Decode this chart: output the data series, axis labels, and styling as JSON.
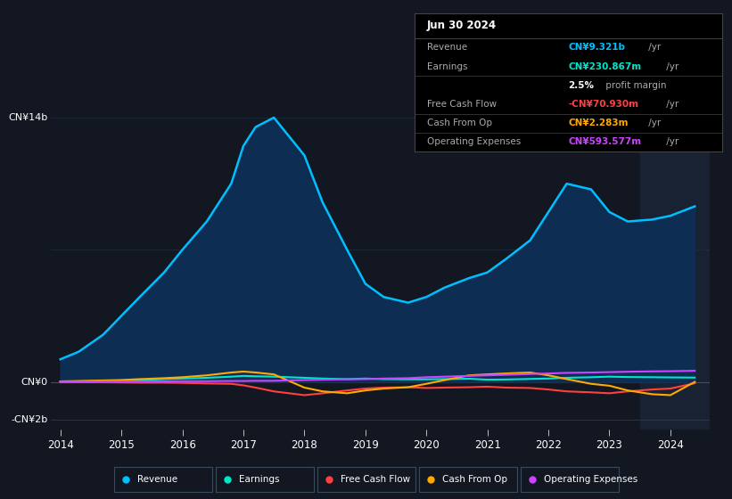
{
  "background_color": "#131722",
  "plot_bg_color": "#131722",
  "years": [
    2014.0,
    2014.3,
    2014.7,
    2015.0,
    2015.3,
    2015.7,
    2016.0,
    2016.4,
    2016.8,
    2017.0,
    2017.2,
    2017.5,
    2018.0,
    2018.3,
    2018.7,
    2019.0,
    2019.3,
    2019.7,
    2020.0,
    2020.3,
    2020.7,
    2021.0,
    2021.3,
    2021.7,
    2022.0,
    2022.3,
    2022.7,
    2023.0,
    2023.3,
    2023.7,
    2024.0,
    2024.4
  ],
  "revenue": [
    1.2,
    1.6,
    2.5,
    3.5,
    4.5,
    5.8,
    7.0,
    8.5,
    10.5,
    12.5,
    13.5,
    14.0,
    12.0,
    9.5,
    7.0,
    5.2,
    4.5,
    4.2,
    4.5,
    5.0,
    5.5,
    5.8,
    6.5,
    7.5,
    9.0,
    10.5,
    10.2,
    9.0,
    8.5,
    8.6,
    8.8,
    9.3
  ],
  "earnings": [
    0.02,
    0.03,
    0.05,
    0.08,
    0.1,
    0.15,
    0.18,
    0.22,
    0.28,
    0.32,
    0.3,
    0.28,
    0.22,
    0.18,
    0.15,
    0.18,
    0.15,
    0.14,
    0.14,
    0.15,
    0.17,
    0.12,
    0.13,
    0.16,
    0.18,
    0.22,
    0.25,
    0.28,
    0.26,
    0.25,
    0.24,
    0.23
  ],
  "free_cash_flow": [
    -0.02,
    -0.02,
    -0.02,
    -0.03,
    -0.04,
    -0.04,
    -0.05,
    -0.08,
    -0.1,
    -0.18,
    -0.3,
    -0.5,
    -0.7,
    -0.6,
    -0.45,
    -0.35,
    -0.3,
    -0.28,
    -0.32,
    -0.3,
    -0.28,
    -0.25,
    -0.3,
    -0.32,
    -0.4,
    -0.5,
    -0.55,
    -0.6,
    -0.5,
    -0.4,
    -0.35,
    -0.07
  ],
  "cash_from_op": [
    0.03,
    0.05,
    0.08,
    0.1,
    0.15,
    0.2,
    0.25,
    0.35,
    0.5,
    0.55,
    0.5,
    0.4,
    -0.3,
    -0.5,
    -0.6,
    -0.45,
    -0.35,
    -0.28,
    -0.1,
    0.1,
    0.35,
    0.4,
    0.45,
    0.5,
    0.35,
    0.15,
    -0.1,
    -0.2,
    -0.45,
    -0.65,
    -0.7,
    0.002
  ],
  "operating_expenses": [
    0.01,
    0.01,
    0.02,
    0.02,
    0.03,
    0.03,
    0.04,
    0.04,
    0.05,
    0.05,
    0.06,
    0.06,
    0.1,
    0.12,
    0.14,
    0.15,
    0.18,
    0.2,
    0.25,
    0.28,
    0.32,
    0.35,
    0.38,
    0.42,
    0.45,
    0.48,
    0.5,
    0.52,
    0.54,
    0.56,
    0.57,
    0.59
  ],
  "revenue_color": "#00bfff",
  "revenue_fill": "#0e2d52",
  "earnings_color": "#00e5cc",
  "free_cash_flow_color": "#ff4040",
  "cash_from_op_color": "#ffaa00",
  "operating_expenses_color": "#cc44ff",
  "ylim": [
    -2.5,
    16.0
  ],
  "xlim": [
    2013.85,
    2024.65
  ],
  "xticks": [
    2014,
    2015,
    2016,
    2017,
    2018,
    2019,
    2020,
    2021,
    2022,
    2023,
    2024
  ],
  "info_box": {
    "title": "Jun 30 2024",
    "rows": [
      {
        "label": "Revenue",
        "value": "CN¥9.321b",
        "suffix": " /yr",
        "color": "#00bfff"
      },
      {
        "label": "Earnings",
        "value": "CN¥230.867m",
        "suffix": " /yr",
        "color": "#00e5cc"
      },
      {
        "label": "",
        "value": "2.5%",
        "suffix": " profit margin",
        "color": "#ffffff",
        "bold_val": true
      },
      {
        "label": "Free Cash Flow",
        "value": "-CN¥70.930m",
        "suffix": " /yr",
        "color": "#ff4040"
      },
      {
        "label": "Cash From Op",
        "value": "CN¥2.283m",
        "suffix": " /yr",
        "color": "#ffaa00"
      },
      {
        "label": "Operating Expenses",
        "value": "CN¥593.577m",
        "suffix": " /yr",
        "color": "#cc44ff"
      }
    ]
  },
  "legend": [
    {
      "label": "Revenue",
      "color": "#00bfff"
    },
    {
      "label": "Earnings",
      "color": "#00e5cc"
    },
    {
      "label": "Free Cash Flow",
      "color": "#ff4040"
    },
    {
      "label": "Cash From Op",
      "color": "#ffaa00"
    },
    {
      "label": "Operating Expenses",
      "color": "#cc44ff"
    }
  ]
}
